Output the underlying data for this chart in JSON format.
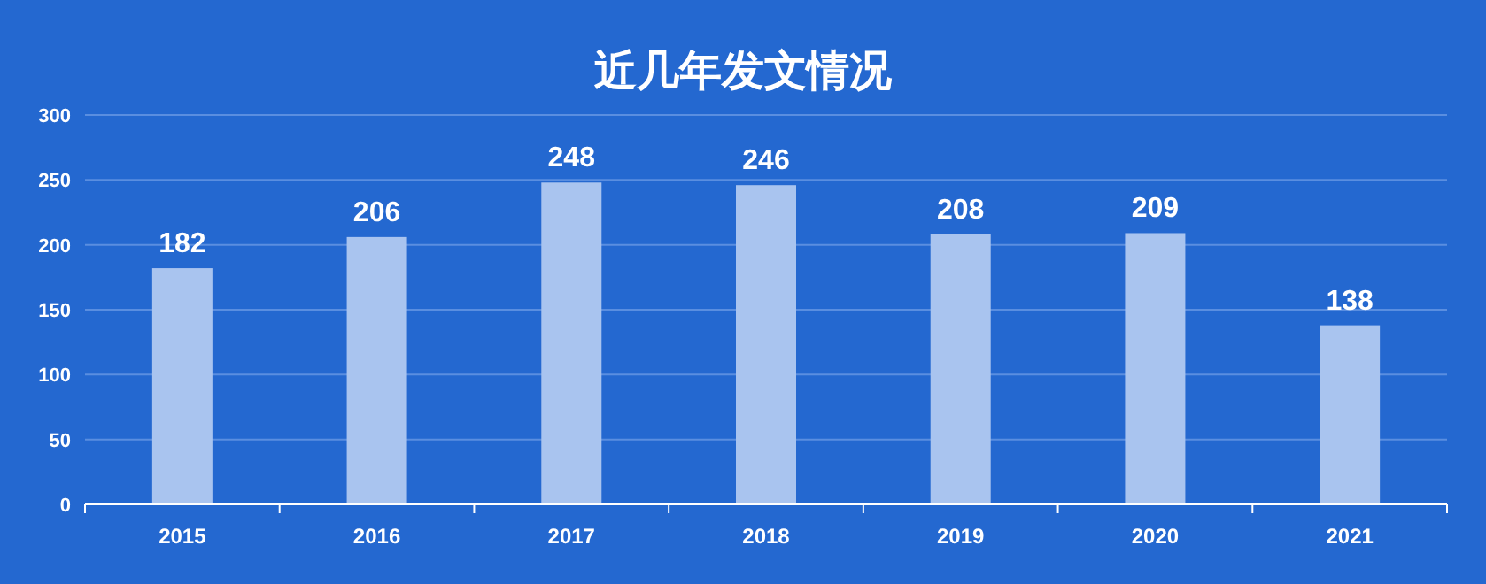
{
  "chart_data": {
    "type": "bar",
    "title": "近几年发文情况",
    "categories": [
      "2015",
      "2016",
      "2017",
      "2018",
      "2019",
      "2020",
      "2021"
    ],
    "values": [
      182,
      206,
      248,
      246,
      208,
      209,
      138
    ],
    "color": "#a9c4ef",
    "ylim": [
      0,
      300
    ],
    "yticks": [
      0,
      50,
      100,
      150,
      200,
      250,
      300
    ],
    "grid": "y",
    "data_labels": true
  }
}
